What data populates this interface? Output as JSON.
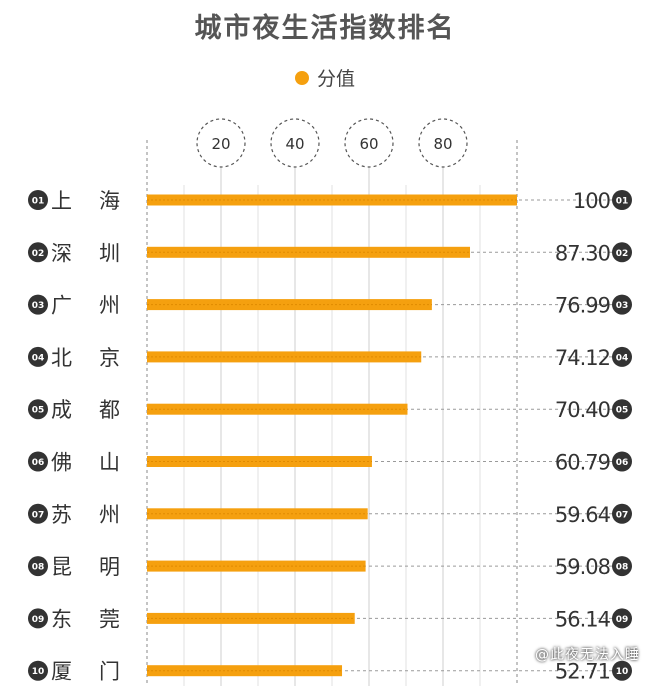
{
  "colors": {
    "bar": "#f5a00f",
    "bar_dark": "#e08a00",
    "badge": "#333333",
    "grid": "#aaaaaa",
    "text": "#333333"
  },
  "chart_data": {
    "type": "bar",
    "orientation": "horizontal",
    "title": "城市夜生活指数排名",
    "legend": {
      "label": "分值",
      "placement": "top-center"
    },
    "xlim": [
      0,
      100
    ],
    "xticks": [
      20,
      40,
      60,
      80
    ],
    "grid": true,
    "categories": [
      {
        "rank": "01",
        "city": [
          "上",
          "海"
        ]
      },
      {
        "rank": "02",
        "city": [
          "深",
          "圳"
        ]
      },
      {
        "rank": "03",
        "city": [
          "广",
          "州"
        ]
      },
      {
        "rank": "04",
        "city": [
          "北",
          "京"
        ]
      },
      {
        "rank": "05",
        "city": [
          "成",
          "都"
        ]
      },
      {
        "rank": "06",
        "city": [
          "佛",
          "山"
        ]
      },
      {
        "rank": "07",
        "city": [
          "苏",
          "州"
        ]
      },
      {
        "rank": "08",
        "city": [
          "昆",
          "明"
        ]
      },
      {
        "rank": "09",
        "city": [
          "东",
          "莞"
        ]
      },
      {
        "rank": "10",
        "city": [
          "厦",
          "门"
        ]
      }
    ],
    "values": [
      100,
      87.3,
      76.99,
      74.12,
      70.4,
      60.79,
      59.64,
      59.08,
      56.14,
      52.71
    ],
    "value_labels": [
      "100",
      "87.30",
      "76.99",
      "74.12",
      "70.40",
      "60.79",
      "59.64",
      "59.08",
      "56.14",
      "52.71"
    ]
  },
  "watermark": "@此夜无法入睡"
}
